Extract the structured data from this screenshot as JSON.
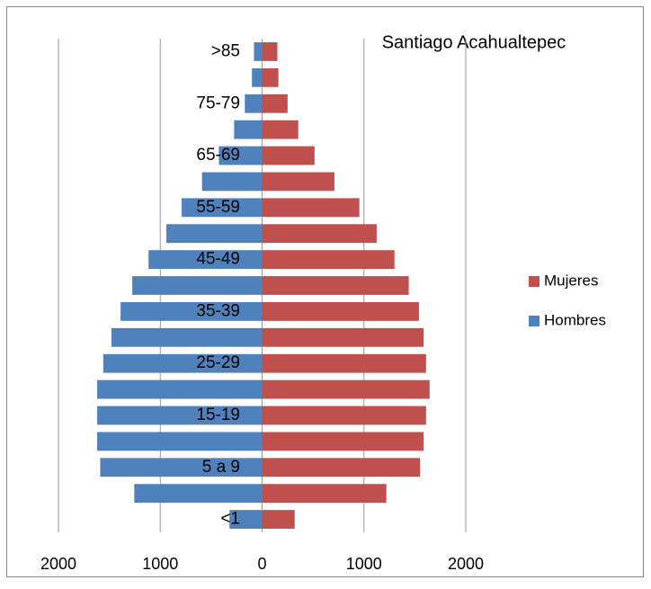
{
  "chart_data": {
    "type": "pyramid",
    "title": "Santiago Acahualtepec",
    "categories": [
      "<1",
      null,
      "5 a 9",
      null,
      "15-19",
      null,
      "25-29",
      null,
      "35-39",
      null,
      "45-49",
      null,
      "55-59",
      null,
      "65-69",
      null,
      "75-79",
      null,
      ">85"
    ],
    "series": [
      {
        "name": "Mujeres",
        "color": "#c0504d",
        "values": [
          320,
          1220,
          1550,
          1585,
          1610,
          1645,
          1610,
          1585,
          1540,
          1440,
          1300,
          1125,
          955,
          710,
          515,
          355,
          250,
          160,
          150
        ]
      },
      {
        "name": "Hombres",
        "color": "#4f81bd",
        "values": [
          -320,
          -1255,
          -1590,
          -1620,
          -1620,
          -1620,
          -1560,
          -1480,
          -1390,
          -1275,
          -1115,
          -940,
          -790,
          -590,
          -425,
          -275,
          -170,
          -100,
          -80
        ]
      }
    ],
    "xlim": [
      -2000,
      2000
    ],
    "xticks": [
      {
        "value": -2000,
        "label": "2000",
        "color": "#ff0000"
      },
      {
        "value": -1000,
        "label": "1000",
        "color": "#ff0000"
      },
      0,
      1000,
      2000
    ],
    "grid": true,
    "legend": "right"
  }
}
